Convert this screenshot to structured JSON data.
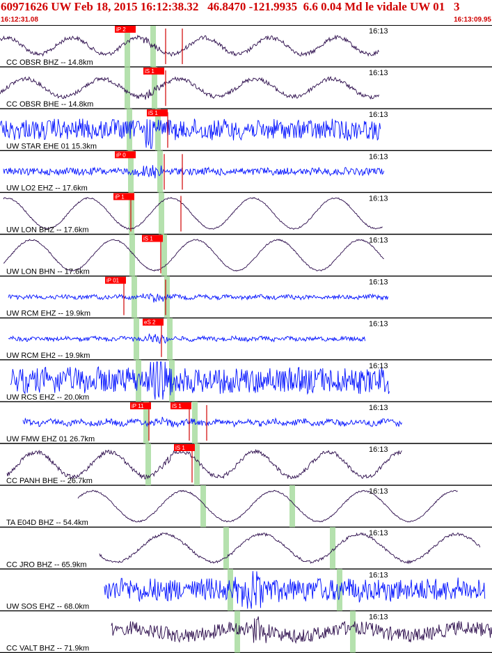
{
  "header": {
    "title": "60971626 UW Feb 18, 2015 16:12:38.32   46.8470 -121.9935  6.6 0.04 Md le vidale UW 01   3",
    "start_time": "16:12:31.08",
    "end_time": "16:13:09.95"
  },
  "colors": {
    "header_text": "#d00000",
    "trace_dark": "#2a0a4a",
    "trace_blue": "#0010ff",
    "pick_box": "#ff0000",
    "pick_line": "#d00000",
    "phase_band": "#a8dca0"
  },
  "tick_label": "16:13",
  "stations": [
    {
      "label": "CC OBSR BHZ -- 14.8km",
      "color": "dark",
      "picks": [
        "iP 2"
      ]
    },
    {
      "label": "CC OBSR BHE -- 14.8km",
      "color": "dark",
      "picks": [
        "iS 1"
      ]
    },
    {
      "label": "UW STAR EHE 01 15.3km",
      "color": "blue",
      "picks": [
        "iS 1"
      ]
    },
    {
      "label": "UW LO2 EHZ -- 17.6km",
      "color": "blue",
      "picks": [
        "iP 0"
      ]
    },
    {
      "label": "UW LON BHZ -- 17.6km",
      "color": "dark",
      "picks": [
        "iP 1"
      ]
    },
    {
      "label": "UW LON BHN -- 17.6km",
      "color": "dark",
      "picks": [
        "iS 1"
      ]
    },
    {
      "label": "UW RCM EHZ -- 19.9km",
      "color": "blue",
      "picks": [
        "iP 01"
      ]
    },
    {
      "label": "UW RCM EH2 -- 19.9km",
      "color": "blue",
      "picks": [
        "eS 2"
      ]
    },
    {
      "label": "UW RCS EHZ -- 20.0km",
      "color": "blue",
      "picks": []
    },
    {
      "label": "UW FMW EHZ 01 26.7km",
      "color": "blue",
      "picks": [
        "iP 11",
        "iS 1"
      ]
    },
    {
      "label": "CC PANH BHE -- 26.7km",
      "color": "dark",
      "picks": [
        "iS 1"
      ]
    },
    {
      "label": "TA E04D BHZ -- 54.4km",
      "color": "dark",
      "picks": []
    },
    {
      "label": "CC JRO BHZ -- 65.9km",
      "color": "dark",
      "picks": []
    },
    {
      "label": "UW SOS EHZ -- 68.0km",
      "color": "blue",
      "picks": []
    },
    {
      "label": "CC VALT BHZ -- 71.9km",
      "color": "dark",
      "picks": []
    }
  ]
}
